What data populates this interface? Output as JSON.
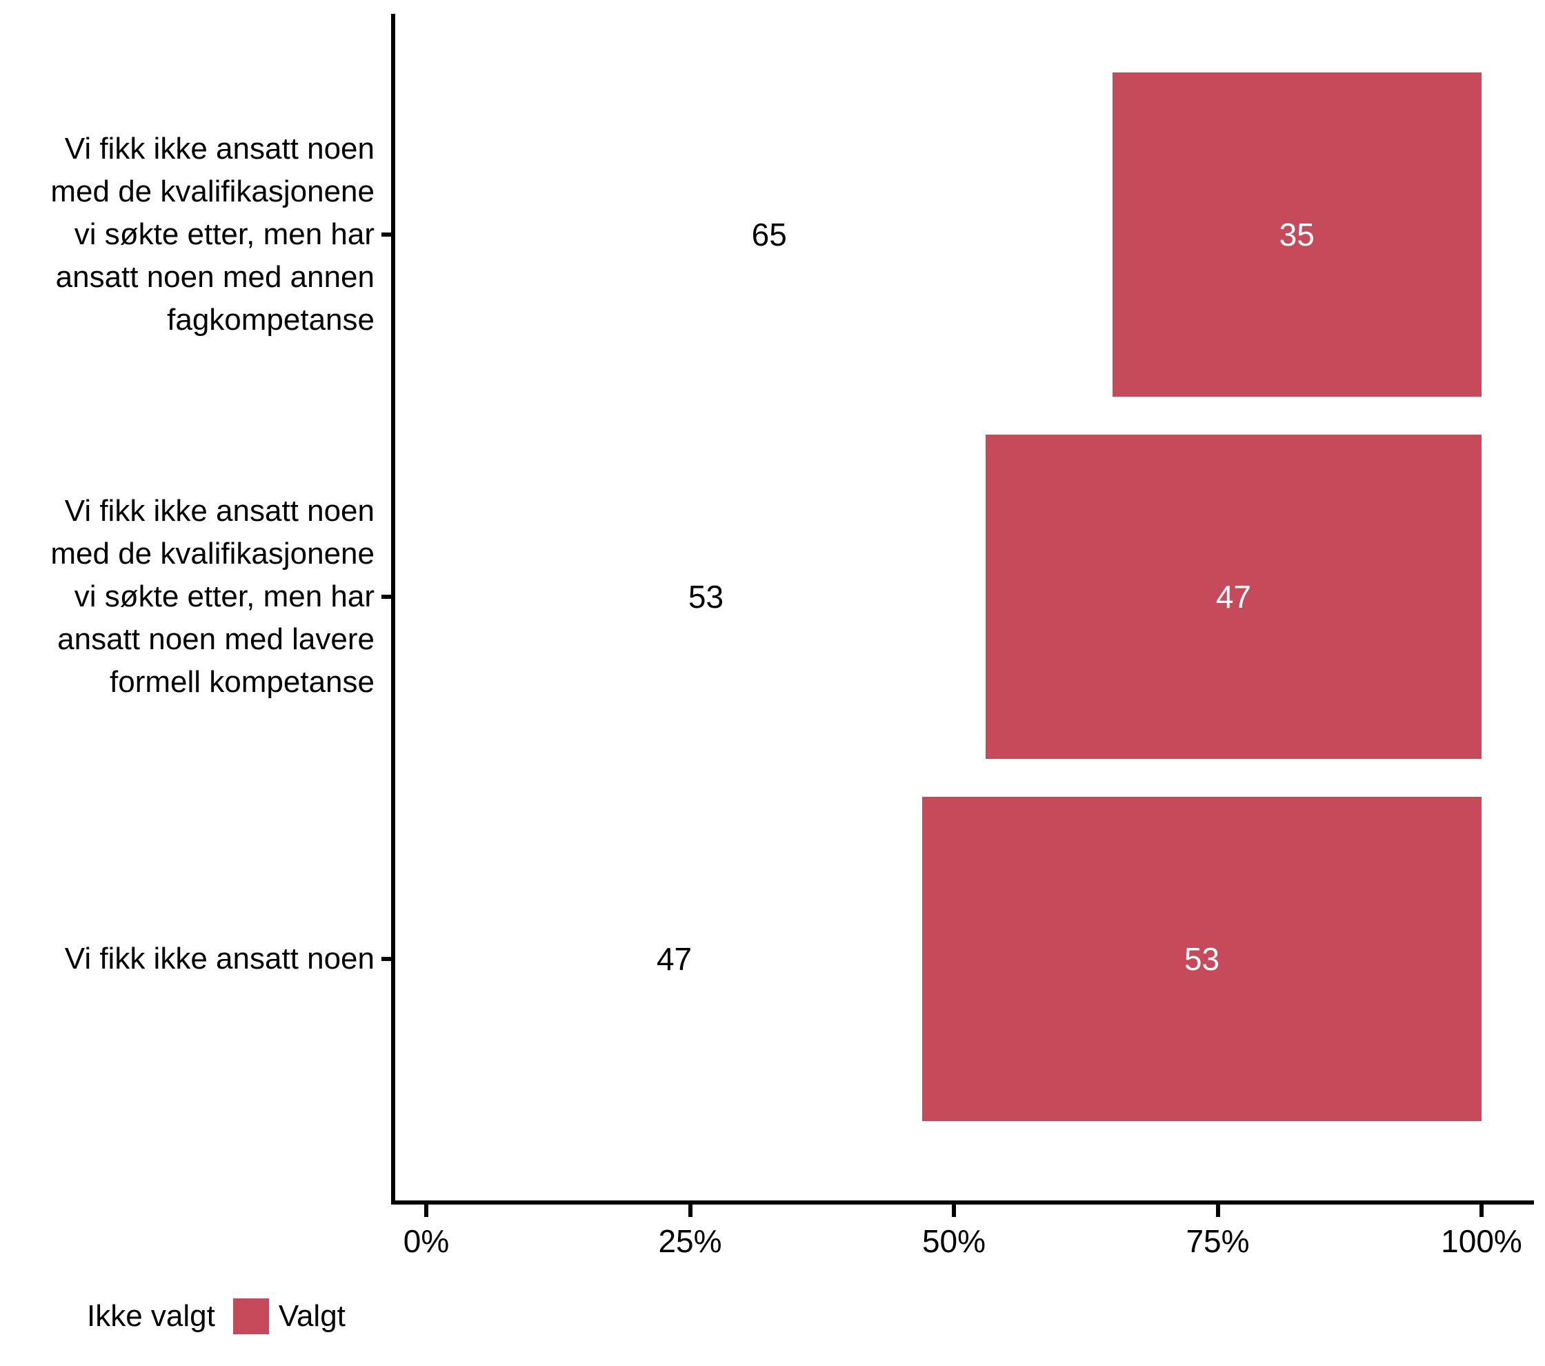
{
  "chart_data": {
    "type": "bar",
    "orientation": "horizontal",
    "stacked": true,
    "title": "",
    "xlabel": "",
    "ylabel": "",
    "grid": false,
    "background": "#FFFFFF",
    "categories": [
      "Vi fikk ikke ansatt noen med de kvalifikasjonene vi søkte etter, men har ansatt noen med annen fagkompetanse",
      "Vi fikk ikke ansatt noen med de kvalifikasjonene vi søkte etter, men har ansatt noen med lavere formell kompetanse",
      "Vi fikk ikke ansatt noen"
    ],
    "series": [
      {
        "name": "Ikke valgt",
        "color": "#FFFFFF",
        "label_color": "#000000",
        "values": [
          65,
          53,
          47
        ]
      },
      {
        "name": "Valgt",
        "color": "#C64A59",
        "label_color": "#FFFFFF",
        "values": [
          35,
          47,
          53
        ]
      }
    ],
    "x_axis": {
      "range": [
        0,
        100
      ],
      "unit": "percent",
      "tick_labels": [
        "0%",
        "25%",
        "50%",
        "75%",
        "100%"
      ],
      "tick_values": [
        0,
        25,
        50,
        75,
        100
      ]
    },
    "legend": {
      "position": "bottom-left",
      "items": [
        {
          "label": "Ikke valgt",
          "color": "#FFFFFF"
        },
        {
          "label": "Valgt",
          "color": "#C64A59"
        }
      ]
    }
  },
  "colors": {
    "axis": "#000000",
    "text": "#000000",
    "bar_selected": "#C64A59",
    "bar_not_selected": "#FFFFFF",
    "background": "#FFFFFF"
  }
}
